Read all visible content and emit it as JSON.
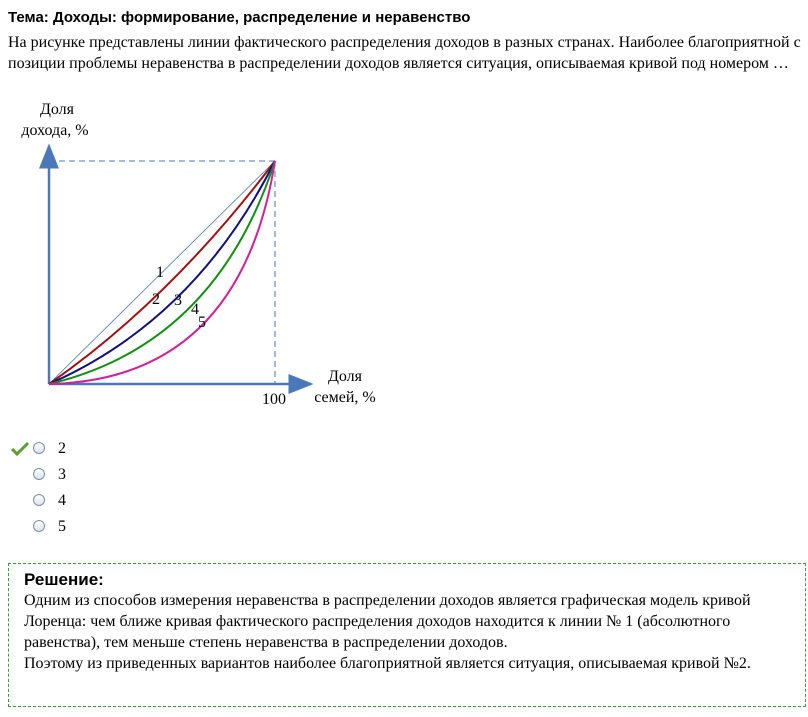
{
  "header": {
    "title": "Тема: Доходы: формирование, распределение и неравенство"
  },
  "question": {
    "text": "На рисунке представлены линии фактического распределения доходов в разных странах. Наиболее благоприятной с позиции проблемы неравенства в распределении доходов является  ситуация, описываемая кривой под номером …"
  },
  "diagram": {
    "y_axis_label": [
      "Доля",
      "дохода, %"
    ],
    "x_axis_label": [
      "Доля",
      "семей, %"
    ],
    "x_end_label": "100",
    "curve_labels": [
      "1",
      "2",
      "3",
      "4",
      "5"
    ]
  },
  "options": [
    "2",
    "3",
    "4",
    "5"
  ],
  "solution": {
    "heading": "Решение:",
    "paragraphs": [
      "Одним из способов измерения неравенства в распределении доходов является графическая модель кривой Лоренца: чем ближе кривая фактического распределения доходов находится к линии № 1 (абсолютного равенства), тем меньше степень неравенства в распределении доходов.",
      "Поэтому из приведенных вариантов наиболее благоприятной является ситуация, описываемая кривой №2."
    ]
  }
}
